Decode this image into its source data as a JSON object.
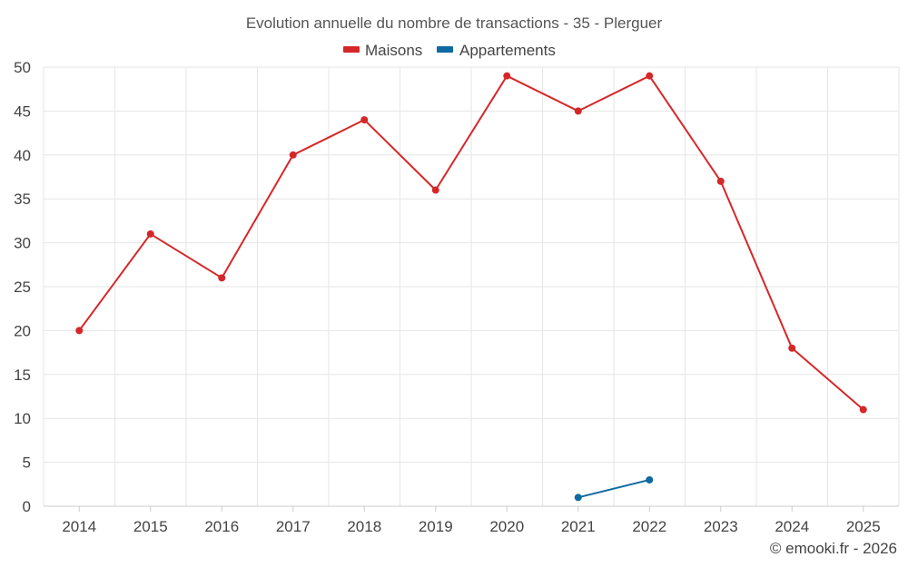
{
  "chart_data": {
    "type": "line",
    "title": "Evolution annuelle du nombre de transactions - 35 - Plerguer",
    "categories": [
      "2014",
      "2015",
      "2016",
      "2017",
      "2018",
      "2019",
      "2020",
      "2021",
      "2022",
      "2023",
      "2024",
      "2025"
    ],
    "y_ticks": [
      "0",
      "5",
      "10",
      "15",
      "20",
      "25",
      "30",
      "35",
      "40",
      "45",
      "50"
    ],
    "ylim": [
      0,
      50
    ],
    "grid": true,
    "legend_position": "top-center",
    "series": [
      {
        "name": "Maisons",
        "color": "#d62728",
        "values": [
          20,
          31,
          26,
          40,
          44,
          36,
          49,
          45,
          49,
          37,
          18,
          11
        ]
      },
      {
        "name": "Appartements",
        "color": "#0e6aa0",
        "values": [
          null,
          null,
          null,
          null,
          null,
          null,
          null,
          1,
          3,
          null,
          null,
          null
        ]
      }
    ],
    "credit": "© emooki.fr - 2026"
  }
}
